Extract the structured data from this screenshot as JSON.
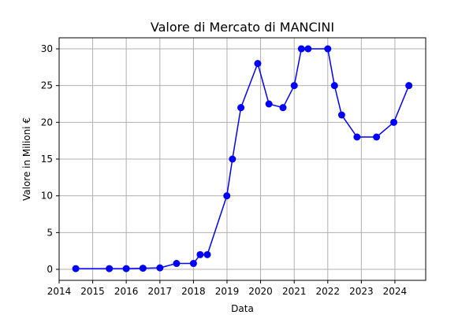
{
  "chart_data": {
    "type": "line",
    "title": "Valore di Mercato di MANCINI",
    "xlabel": "Data",
    "ylabel": "Valore in Milioni €",
    "x_ticks": [
      "2014",
      "2015",
      "2016",
      "2017",
      "2018",
      "2019",
      "2020",
      "2021",
      "2022",
      "2023",
      "2024"
    ],
    "y_ticks": [
      "0",
      "5",
      "10",
      "15",
      "20",
      "25",
      "30"
    ],
    "xlim": [
      "2014-01-01",
      "2024-12-01"
    ],
    "ylim": [
      -1.5,
      31.5
    ],
    "grid": true,
    "color": "#0000ff",
    "series": [
      {
        "points": [
          {
            "date": "2014-07-01",
            "value": 0.1
          },
          {
            "date": "2015-07-01",
            "value": 0.1
          },
          {
            "date": "2016-01-01",
            "value": 0.1
          },
          {
            "date": "2016-07-01",
            "value": 0.15
          },
          {
            "date": "2017-01-01",
            "value": 0.2
          },
          {
            "date": "2017-07-01",
            "value": 0.8
          },
          {
            "date": "2018-01-01",
            "value": 0.8
          },
          {
            "date": "2018-03-15",
            "value": 2
          },
          {
            "date": "2018-06-01",
            "value": 2
          },
          {
            "date": "2018-12-30",
            "value": 10
          },
          {
            "date": "2019-03-01",
            "value": 15
          },
          {
            "date": "2019-06-01",
            "value": 22
          },
          {
            "date": "2019-12-01",
            "value": 28
          },
          {
            "date": "2020-04-01",
            "value": 22.5
          },
          {
            "date": "2020-09-01",
            "value": 22
          },
          {
            "date": "2021-01-01",
            "value": 25
          },
          {
            "date": "2021-03-20",
            "value": 30
          },
          {
            "date": "2021-06-01",
            "value": 30
          },
          {
            "date": "2022-01-01",
            "value": 30
          },
          {
            "date": "2022-03-15",
            "value": 25
          },
          {
            "date": "2022-06-01",
            "value": 21
          },
          {
            "date": "2022-11-15",
            "value": 18
          },
          {
            "date": "2023-06-15",
            "value": 18
          },
          {
            "date": "2023-12-20",
            "value": 20
          },
          {
            "date": "2024-06-01",
            "value": 25
          }
        ]
      }
    ]
  }
}
